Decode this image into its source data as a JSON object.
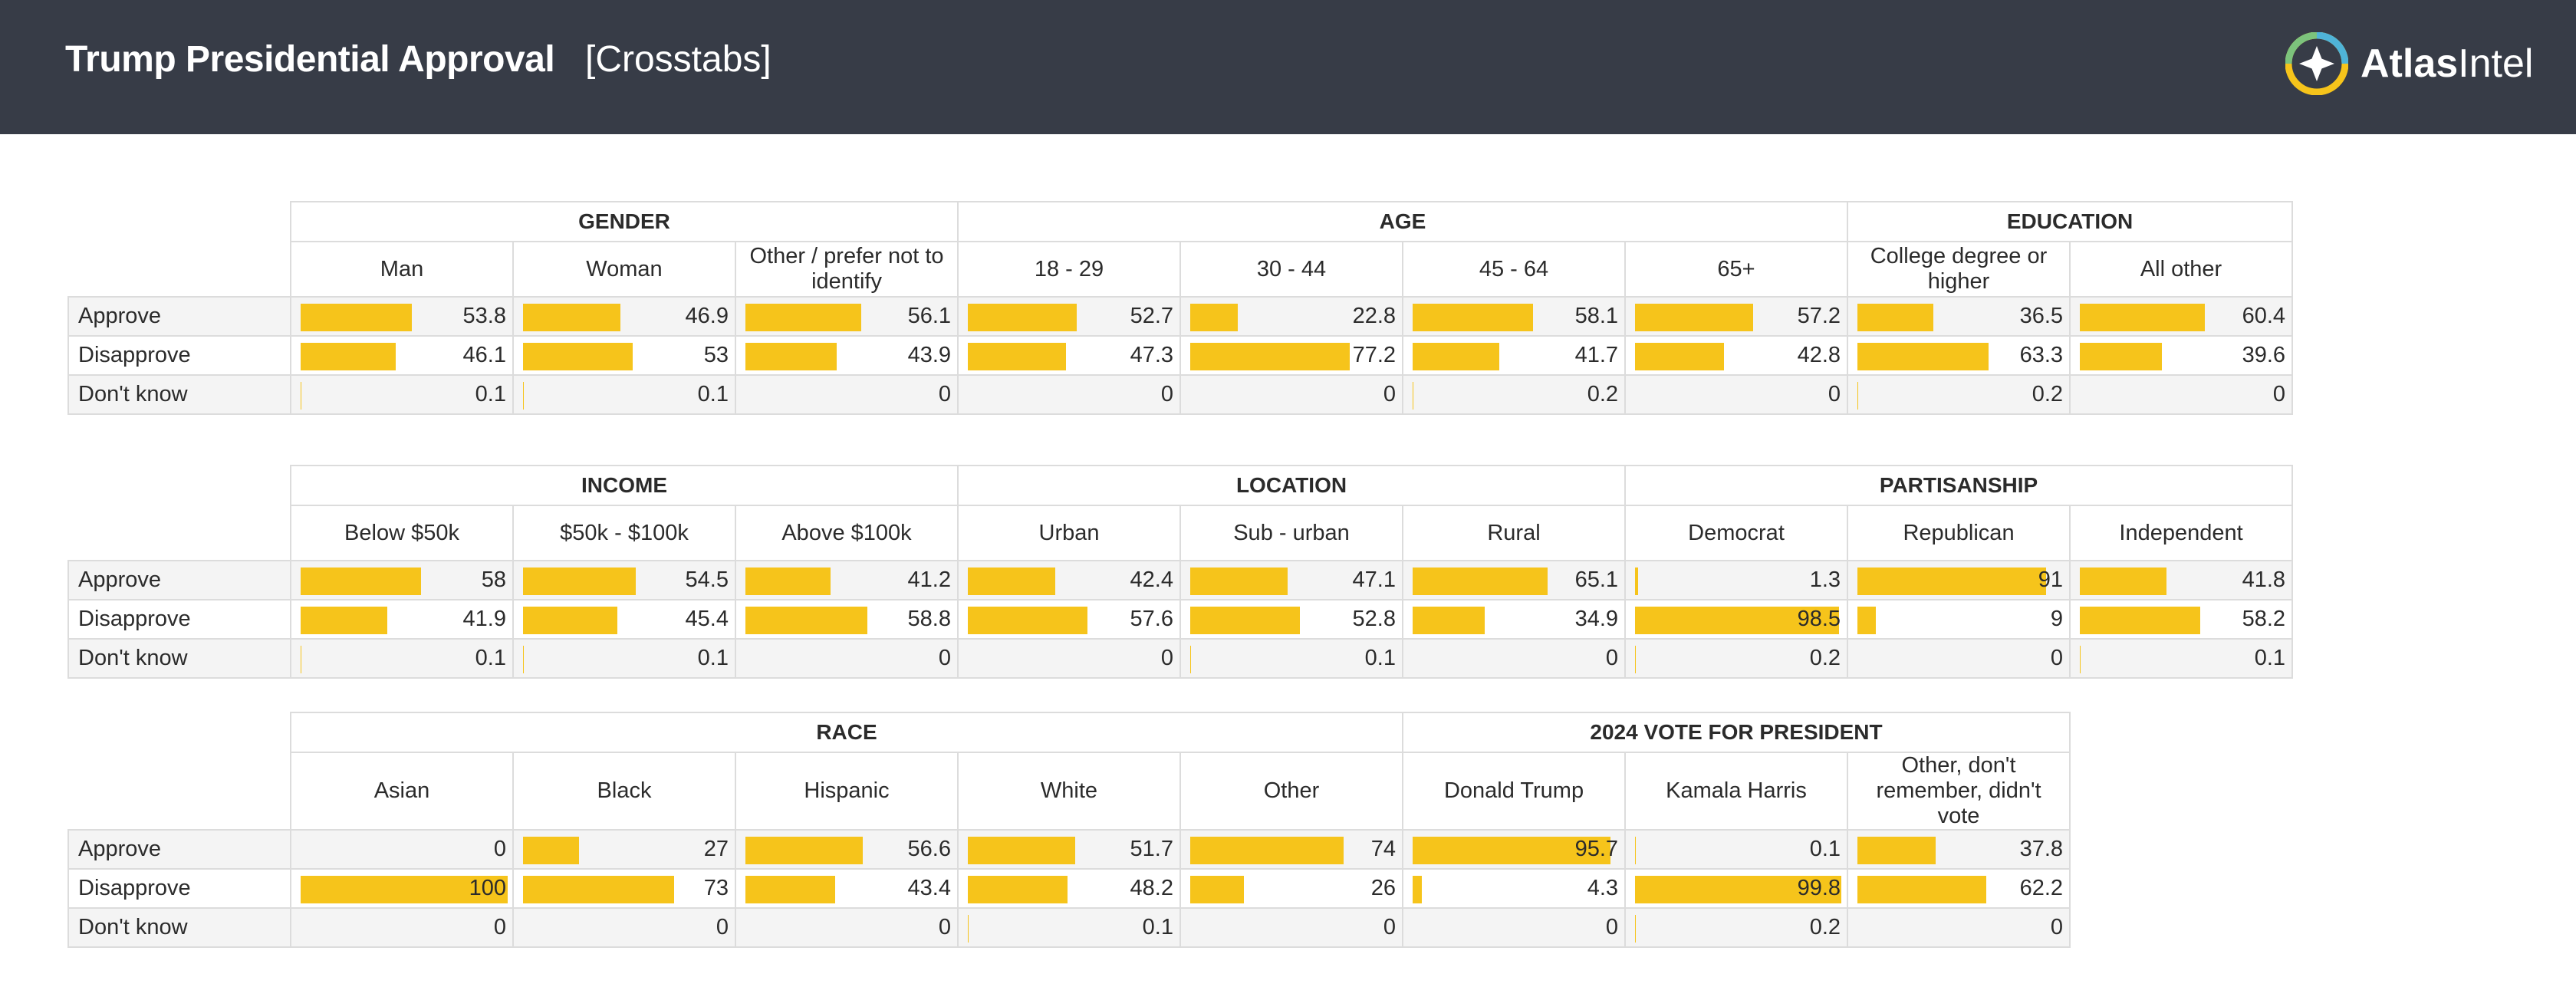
{
  "header": {
    "title": "Trump Presidential Approval",
    "subtitle": "[Crosstabs]",
    "brand_bold": "Atlas",
    "brand_light": "Intel"
  },
  "colors": {
    "header_bg": "#373c47",
    "bar": "#f6c41b",
    "row_alt": "#f4f4f4",
    "border": "#dcdcdc"
  },
  "icons": [
    "atlasintel-logo-icon"
  ],
  "chart_data": [
    {
      "type": "table",
      "title": "",
      "rows": [
        "Approve",
        "Disapprove",
        "Don't know"
      ],
      "groups": [
        {
          "name": "GENDER",
          "columns": [
            {
              "label": "Man",
              "values": [
                53.8,
                46.1,
                0.1
              ]
            },
            {
              "label": "Woman",
              "values": [
                46.9,
                53,
                0.1
              ]
            },
            {
              "label": "Other / prefer not to identify",
              "values": [
                56.1,
                43.9,
                0
              ]
            }
          ]
        },
        {
          "name": "AGE",
          "columns": [
            {
              "label": "18 - 29",
              "values": [
                52.7,
                47.3,
                0
              ]
            },
            {
              "label": "30 - 44",
              "values": [
                22.8,
                77.2,
                0
              ]
            },
            {
              "label": "45 - 64",
              "values": [
                58.1,
                41.7,
                0.2
              ]
            },
            {
              "label": "65+",
              "values": [
                57.2,
                42.8,
                0
              ]
            }
          ]
        },
        {
          "name": "EDUCATION",
          "columns": [
            {
              "label": "College degree or higher",
              "values": [
                36.5,
                63.3,
                0.2
              ]
            },
            {
              "label": "All other",
              "values": [
                60.4,
                39.6,
                0
              ]
            }
          ]
        }
      ]
    },
    {
      "type": "table",
      "title": "",
      "rows": [
        "Approve",
        "Disapprove",
        "Don't know"
      ],
      "groups": [
        {
          "name": "INCOME",
          "columns": [
            {
              "label": "Below $50k",
              "values": [
                58,
                41.9,
                0.1
              ]
            },
            {
              "label": "$50k - $100k",
              "values": [
                54.5,
                45.4,
                0.1
              ]
            },
            {
              "label": "Above $100k",
              "values": [
                41.2,
                58.8,
                0
              ]
            }
          ]
        },
        {
          "name": "LOCATION",
          "columns": [
            {
              "label": "Urban",
              "values": [
                42.4,
                57.6,
                0
              ]
            },
            {
              "label": "Sub - urban",
              "values": [
                47.1,
                52.8,
                0.1
              ]
            },
            {
              "label": "Rural",
              "values": [
                65.1,
                34.9,
                0
              ]
            }
          ]
        },
        {
          "name": "PARTISANSHIP",
          "columns": [
            {
              "label": "Democrat",
              "values": [
                1.3,
                98.5,
                0.2
              ]
            },
            {
              "label": "Republican",
              "values": [
                91,
                9,
                0
              ]
            },
            {
              "label": "Independent",
              "values": [
                41.8,
                58.2,
                0.1
              ]
            }
          ]
        }
      ]
    },
    {
      "type": "table",
      "title": "",
      "rows": [
        "Approve",
        "Disapprove",
        "Don't know"
      ],
      "groups": [
        {
          "name": "RACE",
          "columns": [
            {
              "label": "Asian",
              "values": [
                0,
                100,
                0
              ]
            },
            {
              "label": "Black",
              "values": [
                27,
                73,
                0
              ]
            },
            {
              "label": "Hispanic",
              "values": [
                56.6,
                43.4,
                0
              ]
            },
            {
              "label": "White",
              "values": [
                51.7,
                48.2,
                0.1
              ]
            },
            {
              "label": "Other",
              "values": [
                74,
                26,
                0
              ]
            }
          ]
        },
        {
          "name": "2024 VOTE FOR PRESIDENT",
          "columns": [
            {
              "label": "Donald Trump",
              "values": [
                95.7,
                4.3,
                0
              ]
            },
            {
              "label": "Kamala Harris",
              "values": [
                0.1,
                99.8,
                0.2
              ]
            },
            {
              "label": "Other, don't remember, didn't vote",
              "values": [
                37.8,
                62.2,
                0
              ]
            }
          ]
        }
      ]
    }
  ]
}
